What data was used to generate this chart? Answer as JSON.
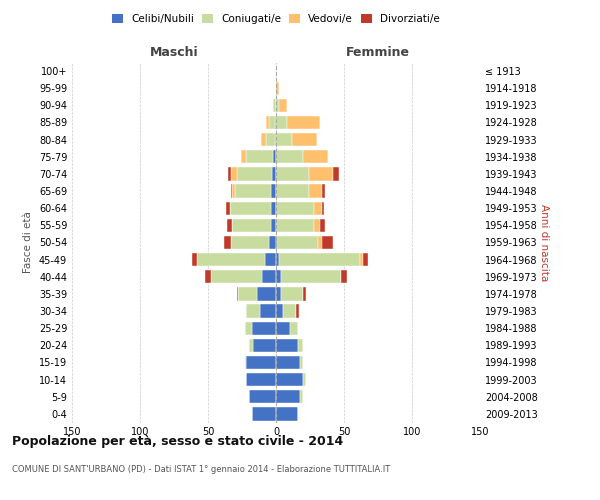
{
  "age_groups": [
    "0-4",
    "5-9",
    "10-14",
    "15-19",
    "20-24",
    "25-29",
    "30-34",
    "35-39",
    "40-44",
    "45-49",
    "50-54",
    "55-59",
    "60-64",
    "65-69",
    "70-74",
    "75-79",
    "80-84",
    "85-89",
    "90-94",
    "95-99",
    "100+"
  ],
  "birth_years": [
    "2009-2013",
    "2004-2008",
    "1999-2003",
    "1994-1998",
    "1989-1993",
    "1984-1988",
    "1979-1983",
    "1974-1978",
    "1969-1973",
    "1964-1968",
    "1959-1963",
    "1954-1958",
    "1949-1953",
    "1944-1948",
    "1939-1943",
    "1934-1938",
    "1929-1933",
    "1924-1928",
    "1919-1923",
    "1914-1918",
    "≤ 1913"
  ],
  "males": {
    "celibi": [
      18,
      20,
      22,
      22,
      17,
      18,
      12,
      14,
      10,
      8,
      5,
      4,
      4,
      4,
      3,
      2,
      1,
      1,
      0,
      0,
      0
    ],
    "coniugati": [
      0,
      0,
      0,
      1,
      3,
      5,
      10,
      14,
      38,
      50,
      28,
      28,
      30,
      26,
      26,
      20,
      6,
      4,
      2,
      0,
      0
    ],
    "vedovi": [
      0,
      0,
      0,
      0,
      0,
      0,
      0,
      0,
      0,
      0,
      0,
      0,
      0,
      2,
      4,
      4,
      4,
      2,
      0,
      0,
      0
    ],
    "divorziati": [
      0,
      0,
      0,
      0,
      0,
      0,
      0,
      1,
      4,
      4,
      5,
      4,
      3,
      1,
      2,
      0,
      0,
      0,
      0,
      0,
      0
    ]
  },
  "females": {
    "nubili": [
      16,
      18,
      20,
      18,
      16,
      10,
      5,
      4,
      4,
      2,
      1,
      0,
      0,
      0,
      0,
      0,
      0,
      0,
      0,
      0,
      0
    ],
    "coniugate": [
      0,
      2,
      2,
      2,
      4,
      6,
      10,
      16,
      44,
      60,
      30,
      28,
      28,
      24,
      24,
      20,
      12,
      8,
      2,
      0,
      0
    ],
    "vedove": [
      0,
      0,
      0,
      0,
      0,
      0,
      0,
      0,
      0,
      2,
      3,
      4,
      6,
      10,
      18,
      18,
      18,
      24,
      6,
      2,
      0
    ],
    "divorziate": [
      0,
      0,
      0,
      0,
      0,
      0,
      2,
      2,
      4,
      4,
      8,
      4,
      1,
      2,
      4,
      0,
      0,
      0,
      0,
      0,
      0
    ]
  },
  "colors": {
    "celibi": "#4472c4",
    "coniugati": "#c8dca0",
    "vedovi": "#ffc06e",
    "divorziati": "#c0392b"
  },
  "xlim": 150,
  "title": "Popolazione per età, sesso e stato civile - 2014",
  "subtitle": "COMUNE DI SANT'URBANO (PD) - Dati ISTAT 1° gennaio 2014 - Elaborazione TUTTITALIA.IT",
  "ylabel_left": "Fasce di età",
  "ylabel_right": "Anni di nascita",
  "xlabel_males": "Maschi",
  "xlabel_females": "Femmine",
  "bg_color": "#ffffff",
  "grid_color": "#cccccc",
  "legend_labels": [
    "Celibi/Nubili",
    "Coniugati/e",
    "Vedovi/e",
    "Divorziati/e"
  ]
}
